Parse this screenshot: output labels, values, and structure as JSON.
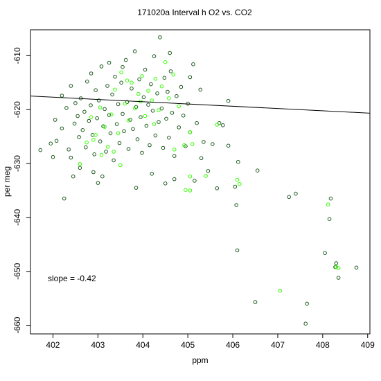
{
  "chart_data": {
    "type": "scatter",
    "title": "171020a   Interval h O2 vs. CO2",
    "xlabel": "ppm",
    "ylabel": "per meg",
    "xlim": [
      401.5,
      409.05
    ],
    "ylim": [
      -661.6,
      -605.2
    ],
    "x_ticks": [
      402,
      403,
      404,
      405,
      406,
      407,
      408,
      409
    ],
    "y_ticks": [
      -610,
      -620,
      -630,
      -640,
      -650,
      -660
    ],
    "grid": false,
    "annotation": "slope =  -0.42",
    "colors": {
      "dark_points": "#1e5a1e",
      "bright_points": "#33ff00",
      "line": "#000000",
      "axis": "#000000"
    },
    "fit_line": {
      "slope": -0.42,
      "intercept": -448.86
    },
    "series": [
      {
        "color": "#1e5a1e",
        "points": [
          [
            401.72,
            -627.5
          ],
          [
            401.95,
            -626.3
          ],
          [
            402.08,
            -625.8
          ],
          [
            402.2,
            -623.5
          ],
          [
            402.25,
            -636.5
          ],
          [
            402.3,
            -619.7
          ],
          [
            402.35,
            -627.4
          ],
          [
            402.4,
            -628.9
          ],
          [
            402.48,
            -622.6
          ],
          [
            402.5,
            -618.8
          ],
          [
            402.55,
            -621.2
          ],
          [
            402.58,
            -625.1
          ],
          [
            402.62,
            -617.9
          ],
          [
            402.66,
            -623.8
          ],
          [
            402.7,
            -620.4
          ],
          [
            402.73,
            -627.0
          ],
          [
            402.76,
            -614.8
          ],
          [
            402.8,
            -622.1
          ],
          [
            402.84,
            -619.2
          ],
          [
            402.88,
            -624.7
          ],
          [
            402.92,
            -628.3
          ],
          [
            402.95,
            -616.4
          ],
          [
            402.98,
            -621.6
          ],
          [
            403.02,
            -618.3
          ],
          [
            403.05,
            -625.9
          ],
          [
            403.08,
            -612.0
          ],
          [
            403.12,
            -623.1
          ],
          [
            403.15,
            -619.9
          ],
          [
            403.18,
            -627.8
          ],
          [
            403.21,
            -615.6
          ],
          [
            403.25,
            -621.0
          ],
          [
            403.28,
            -624.4
          ],
          [
            403.32,
            -617.2
          ],
          [
            403.35,
            -629.4
          ],
          [
            403.38,
            -613.9
          ],
          [
            403.42,
            -622.7
          ],
          [
            403.45,
            -619.0
          ],
          [
            403.48,
            -626.2
          ],
          [
            403.52,
            -615.0
          ],
          [
            403.55,
            -620.8
          ],
          [
            403.58,
            -624.0
          ],
          [
            403.62,
            -610.8
          ],
          [
            403.65,
            -618.6
          ],
          [
            403.68,
            -627.3
          ],
          [
            403.72,
            -621.9
          ],
          [
            403.75,
            -616.1
          ],
          [
            403.78,
            -623.6
          ],
          [
            403.82,
            -609.2
          ],
          [
            403.85,
            -619.5
          ],
          [
            403.88,
            -625.5
          ],
          [
            403.92,
            -614.4
          ],
          [
            403.95,
            -621.4
          ],
          [
            403.98,
            -628.0
          ],
          [
            404.02,
            -617.7
          ],
          [
            404.05,
            -612.6
          ],
          [
            404.08,
            -623.0
          ],
          [
            404.12,
            -619.1
          ],
          [
            404.15,
            -626.6
          ],
          [
            404.18,
            -615.3
          ],
          [
            404.22,
            -620.2
          ],
          [
            404.25,
            -610.1
          ],
          [
            404.28,
            -624.8
          ],
          [
            404.32,
            -617.0
          ],
          [
            404.35,
            -622.3
          ],
          [
            404.38,
            -606.6
          ],
          [
            404.42,
            -619.8
          ],
          [
            404.45,
            -627.1
          ],
          [
            404.48,
            -614.1
          ],
          [
            404.52,
            -621.7
          ],
          [
            404.55,
            -616.7
          ],
          [
            404.58,
            -625.2
          ],
          [
            404.62,
            -612.9
          ],
          [
            404.65,
            -620.6
          ],
          [
            404.7,
            -628.6
          ],
          [
            404.75,
            -617.5
          ],
          [
            404.8,
            -623.3
          ],
          [
            404.85,
            -615.8
          ],
          [
            404.9,
            -621.1
          ],
          [
            404.95,
            -626.8
          ],
          [
            405.0,
            -618.9
          ],
          [
            405.05,
            -624.2
          ],
          [
            405.12,
            -611.6
          ],
          [
            405.2,
            -622.5
          ],
          [
            405.28,
            -616.3
          ],
          [
            405.35,
            -626.0
          ],
          [
            405.45,
            -631.4
          ],
          [
            405.55,
            -626.4
          ],
          [
            405.65,
            -634.6
          ],
          [
            405.78,
            -622.9
          ],
          [
            405.9,
            -626.7
          ],
          [
            406.05,
            -634.3
          ],
          [
            406.08,
            -637.7
          ],
          [
            406.1,
            -646.1
          ],
          [
            406.12,
            -629.7
          ],
          [
            406.55,
            -631.3
          ],
          [
            407.25,
            -636.2
          ],
          [
            407.4,
            -635.6
          ],
          [
            406.5,
            -655.7
          ],
          [
            407.62,
            -659.7
          ],
          [
            407.65,
            -656.0
          ],
          [
            408.05,
            -646.6
          ],
          [
            408.15,
            -640.3
          ],
          [
            408.18,
            -636.5
          ],
          [
            408.28,
            -649.2
          ],
          [
            408.3,
            -648.5
          ],
          [
            408.35,
            -651.2
          ],
          [
            408.75,
            -649.3
          ],
          [
            402.6,
            -630.8
          ],
          [
            402.9,
            -631.6
          ],
          [
            403.1,
            -632.4
          ],
          [
            403.0,
            -633.6
          ],
          [
            403.85,
            -634.5
          ],
          [
            404.5,
            -633.7
          ],
          [
            404.2,
            -631.9
          ],
          [
            404.7,
            -632.9
          ],
          [
            405.15,
            -633.2
          ],
          [
            405.3,
            -629.0
          ],
          [
            402.4,
            -615.6
          ],
          [
            403.25,
            -611.3
          ],
          [
            402.85,
            -613.3
          ],
          [
            403.55,
            -612.1
          ],
          [
            404.6,
            -609.5
          ],
          [
            405.05,
            -614.0
          ],
          [
            405.7,
            -622.5
          ],
          [
            405.9,
            -618.4
          ],
          [
            402.2,
            -617.4
          ],
          [
            402.05,
            -621.9
          ],
          [
            402.45,
            -632.4
          ],
          [
            402.0,
            -628.8
          ]
        ]
      },
      {
        "color": "#33ff00",
        "points": [
          [
            402.75,
            -626.1
          ],
          [
            402.85,
            -621.4
          ],
          [
            402.95,
            -624.7
          ],
          [
            403.05,
            -619.6
          ],
          [
            403.08,
            -628.4
          ],
          [
            403.15,
            -623.2
          ],
          [
            403.22,
            -626.9
          ],
          [
            403.3,
            -620.9
          ],
          [
            403.38,
            -616.3
          ],
          [
            403.45,
            -624.4
          ],
          [
            403.52,
            -613.1
          ],
          [
            403.6,
            -618.9
          ],
          [
            403.68,
            -622.0
          ],
          [
            403.75,
            -615.0
          ],
          [
            403.82,
            -619.8
          ],
          [
            403.9,
            -617.1
          ],
          [
            403.98,
            -613.8
          ],
          [
            404.05,
            -621.2
          ],
          [
            404.12,
            -616.5
          ],
          [
            404.2,
            -618.3
          ],
          [
            404.28,
            -614.3
          ],
          [
            404.35,
            -620.1
          ],
          [
            404.42,
            -615.7
          ],
          [
            404.5,
            -611.2
          ],
          [
            404.58,
            -617.9
          ],
          [
            404.68,
            -613.5
          ],
          [
            404.8,
            -619.4
          ],
          [
            404.92,
            -626.6
          ],
          [
            405.05,
            -624.2
          ],
          [
            405.65,
            -622.8
          ],
          [
            404.7,
            -627.4
          ],
          [
            403.5,
            -630.3
          ],
          [
            402.6,
            -630.1
          ],
          [
            405.1,
            -626.4
          ],
          [
            405.05,
            -632.4
          ],
          [
            406.1,
            -633.0
          ],
          [
            406.15,
            -633.8
          ],
          [
            405.4,
            -632.3
          ],
          [
            404.95,
            -634.9
          ],
          [
            405.05,
            -635.0
          ],
          [
            407.05,
            -653.6
          ],
          [
            408.12,
            -637.6
          ],
          [
            408.35,
            -649.4
          ],
          [
            408.3,
            -649.2
          ],
          [
            403.65,
            -614.6
          ],
          [
            403.95,
            -618.5
          ],
          [
            404.25,
            -622.7
          ],
          [
            403.35,
            -627.8
          ],
          [
            402.9,
            -625.6
          ]
        ]
      }
    ]
  }
}
